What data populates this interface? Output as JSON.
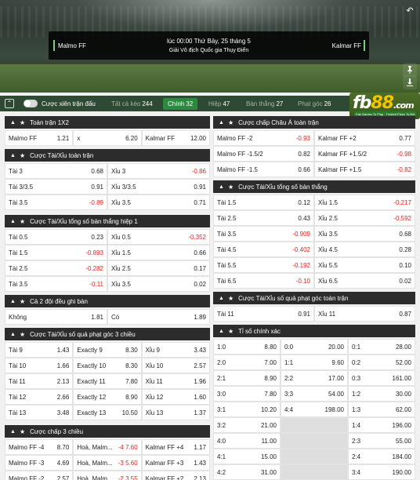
{
  "match": {
    "home": "Malmo FF",
    "away": "Kalmar FF",
    "time": "lúc 00:00 Thứ Bảy, 25 tháng 5",
    "league": "Giải Vô địch Quốc gia Thụy Điển"
  },
  "tabbar": {
    "toggle_label": "Cược xiên trận đấu",
    "tabs": [
      {
        "label": "Tất cả kèo",
        "count": "244"
      },
      {
        "label": "Chính",
        "count": "32"
      },
      {
        "label": "Hiệp",
        "count": "47"
      },
      {
        "label": "Bàn thắng",
        "count": "27"
      },
      {
        "label": "Phạt góc",
        "count": "26"
      }
    ]
  },
  "logo": {
    "text_a": "fb",
    "text_b": "88",
    "text_c": ".com",
    "tagline": "Fair Games To Play · Trusted Place To Bet"
  },
  "left": [
    {
      "title": "Toàn trận 1X2",
      "rows": [
        [
          [
            "Malmo FF",
            "1.21"
          ],
          [
            "x",
            "6.20"
          ],
          [
            "Kalmar FF",
            "12.00"
          ]
        ]
      ]
    },
    {
      "title": "Cược Tài/Xỉu toàn trận",
      "rows": [
        [
          [
            "Tài 3",
            "0.68"
          ],
          [
            "Xỉu 3",
            "-0.86"
          ]
        ],
        [
          [
            "Tài 3/3.5",
            "0.91"
          ],
          [
            "Xỉu 3/3.5",
            "0.91"
          ]
        ],
        [
          [
            "Tài 3.5",
            "-0.89"
          ],
          [
            "Xỉu 3.5",
            "0.71"
          ]
        ]
      ]
    },
    {
      "title": "Cược Tài/Xỉu tổng số bàn thắng hiệp 1",
      "rows": [
        [
          [
            "Tài 0.5",
            "0.23"
          ],
          [
            "Xỉu 0.5",
            "-0.352"
          ]
        ],
        [
          [
            "Tài 1.5",
            "-0.893"
          ],
          [
            "Xỉu 1.5",
            "0.66"
          ]
        ],
        [
          [
            "Tài 2.5",
            "-0.282"
          ],
          [
            "Xỉu 2.5",
            "0.17"
          ]
        ],
        [
          [
            "Tài 3.5",
            "-0.11"
          ],
          [
            "Xỉu 3.5",
            "0.02"
          ]
        ]
      ]
    },
    {
      "title": "Cả 2 đội đều ghi bàn",
      "rows": [
        [
          [
            "Không",
            "1.81"
          ],
          [
            "Có",
            "1.89"
          ]
        ]
      ]
    },
    {
      "title": "Cược Tài/Xỉu số quả phạt góc 3 chiều",
      "rows": [
        [
          [
            "Tài 9",
            "1.43"
          ],
          [
            "Exactly 9",
            "8.30"
          ],
          [
            "Xỉu 9",
            "3.43"
          ]
        ],
        [
          [
            "Tài 10",
            "1.66"
          ],
          [
            "Exactly 10",
            "8.30"
          ],
          [
            "Xỉu 10",
            "2.57"
          ]
        ],
        [
          [
            "Tài 11",
            "2.13"
          ],
          [
            "Exactly 11",
            "7.80"
          ],
          [
            "Xỉu 11",
            "1.96"
          ]
        ],
        [
          [
            "Tài 12",
            "2.66"
          ],
          [
            "Exactly 12",
            "8.90"
          ],
          [
            "Xỉu 12",
            "1.60"
          ]
        ],
        [
          [
            "Tài 13",
            "3.48"
          ],
          [
            "Exactly 13",
            "10.50"
          ],
          [
            "Xỉu 13",
            "1.37"
          ]
        ]
      ]
    },
    {
      "title": "Cược chấp 3 chiều",
      "rows": [
        [
          [
            "Malmo FF -4",
            "8.70"
          ],
          [
            "Hoà, Malm...",
            "-4 7.60"
          ],
          [
            "Kalmar FF +4",
            "1.17"
          ]
        ],
        [
          [
            "Malmo FF -3",
            "4.69"
          ],
          [
            "Hoà, Malm...",
            "-3 5.60"
          ],
          [
            "Kalmar FF +3",
            "1.43"
          ]
        ],
        [
          [
            "Malmo FF -2",
            "2.57"
          ],
          [
            "Hoà, Malm...",
            "-2 3.55"
          ],
          [
            "Kalmar FF +2",
            "2.13"
          ]
        ]
      ]
    }
  ],
  "right": [
    {
      "title": "Cược chấp Châu Á toàn trận",
      "rows": [
        [
          [
            "Malmo FF -2",
            "-0.93"
          ],
          [
            "Kalmar FF +2",
            "0.77"
          ]
        ],
        [
          [
            "Malmo FF -1.5/2",
            "0.82"
          ],
          [
            "Kalmar FF +1.5/2",
            "-0.98"
          ]
        ],
        [
          [
            "Malmo FF -1.5",
            "0.66"
          ],
          [
            "Kalmar FF +1.5",
            "-0.82"
          ]
        ]
      ]
    },
    {
      "title": "Cược Tài/Xỉu tổng số bàn thắng",
      "rows": [
        [
          [
            "Tài 1.5",
            "0.12"
          ],
          [
            "Xỉu 1.5",
            "-0.217"
          ]
        ],
        [
          [
            "Tài 2.5",
            "0.43"
          ],
          [
            "Xỉu 2.5",
            "-0.592"
          ]
        ],
        [
          [
            "Tài 3.5",
            "-0.909"
          ],
          [
            "Xỉu 3.5",
            "0.68"
          ]
        ],
        [
          [
            "Tài 4.5",
            "-0.402"
          ],
          [
            "Xỉu 4.5",
            "0.28"
          ]
        ],
        [
          [
            "Tài 5.5",
            "-0.192"
          ],
          [
            "Xỉu 5.5",
            "0.10"
          ]
        ],
        [
          [
            "Tài 6.5",
            "-0.10"
          ],
          [
            "Xỉu 6.5",
            "0.02"
          ]
        ]
      ]
    },
    {
      "title": "Cược Tài/Xỉu số quả phạt góc toàn trận",
      "rows": [
        [
          [
            "Tài 11",
            "0.91"
          ],
          [
            "Xỉu 11",
            "0.87"
          ]
        ]
      ]
    },
    {
      "title": "Tỉ số chính xác",
      "rows": [
        [
          [
            "1:0",
            "8.80"
          ],
          [
            "0:0",
            "20.00"
          ],
          [
            "0:1",
            "28.00"
          ]
        ],
        [
          [
            "2:0",
            "7.00"
          ],
          [
            "1:1",
            "9.60"
          ],
          [
            "0:2",
            "52.00"
          ]
        ],
        [
          [
            "2:1",
            "8.90"
          ],
          [
            "2:2",
            "17.00"
          ],
          [
            "0:3",
            "161.00"
          ]
        ],
        [
          [
            "3:0",
            "7.80"
          ],
          [
            "3:3",
            "54.00"
          ],
          [
            "1:2",
            "30.00"
          ]
        ],
        [
          [
            "3:1",
            "10.20"
          ],
          [
            "4:4",
            "198.00"
          ],
          [
            "1:3",
            "62.00"
          ]
        ],
        [
          [
            "3:2",
            "21.00"
          ],
          null,
          [
            "1:4",
            "196.00"
          ]
        ],
        [
          [
            "4:0",
            "11.00"
          ],
          null,
          [
            "2:3",
            "55.00"
          ]
        ],
        [
          [
            "4:1",
            "15.00"
          ],
          null,
          [
            "2:4",
            "184.00"
          ]
        ],
        [
          [
            "4:2",
            "31.00"
          ],
          null,
          [
            "3:4",
            "190.00"
          ]
        ]
      ]
    }
  ]
}
